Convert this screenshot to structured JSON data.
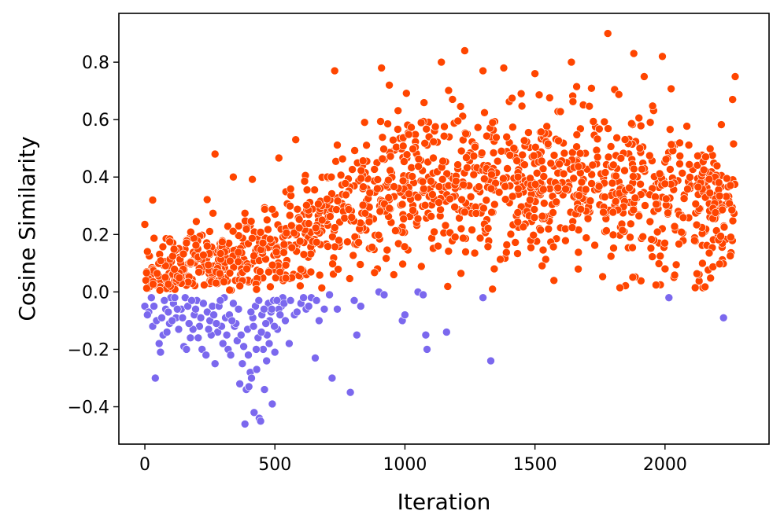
{
  "chart_data": {
    "type": "scatter",
    "title": "",
    "xlabel": "Iteration",
    "ylabel": "Cosine Similarity",
    "xlim": [
      -100,
      2400
    ],
    "ylim": [
      -0.53,
      0.97
    ],
    "xticks": [
      0,
      500,
      1000,
      1500,
      2000
    ],
    "xtick_labels": [
      "0",
      "500",
      "1000",
      "1500",
      "2000"
    ],
    "yticks": [
      -0.4,
      -0.2,
      0.0,
      0.2,
      0.4,
      0.6,
      0.8
    ],
    "ytick_labels": [
      "−0.4",
      "−0.2",
      "0.0",
      "0.2",
      "0.4",
      "0.6",
      "0.8"
    ],
    "grid": false,
    "legend": "none",
    "colors": {
      "positive": "#ff4500",
      "negative": "#7b68ee",
      "marker_edge": "#ffffff"
    },
    "series": [
      {
        "values_type": "negative-similarity points (sample of visible cloud)",
        "color": "#7b68ee",
        "points": [
          [
            0,
            -0.05
          ],
          [
            15,
            -0.07
          ],
          [
            30,
            -0.12
          ],
          [
            40,
            -0.3
          ],
          [
            55,
            -0.18
          ],
          [
            60,
            -0.21
          ],
          [
            70,
            -0.15
          ],
          [
            80,
            -0.06
          ],
          [
            95,
            -0.11
          ],
          [
            110,
            -0.04
          ],
          [
            120,
            -0.09
          ],
          [
            130,
            -0.13
          ],
          [
            150,
            -0.19
          ],
          [
            160,
            -0.2
          ],
          [
            175,
            -0.16
          ],
          [
            190,
            -0.08
          ],
          [
            200,
            -0.03
          ],
          [
            210,
            -0.12
          ],
          [
            220,
            -0.2
          ],
          [
            235,
            -0.22
          ],
          [
            250,
            -0.1
          ],
          [
            260,
            -0.05
          ],
          [
            270,
            -0.25
          ],
          [
            280,
            -0.14
          ],
          [
            300,
            -0.18
          ],
          [
            310,
            -0.09
          ],
          [
            320,
            -0.2
          ],
          [
            330,
            -0.22
          ],
          [
            345,
            -0.12
          ],
          [
            355,
            -0.17
          ],
          [
            365,
            -0.32
          ],
          [
            375,
            -0.25
          ],
          [
            385,
            -0.46
          ],
          [
            390,
            -0.34
          ],
          [
            400,
            -0.33
          ],
          [
            405,
            -0.28
          ],
          [
            410,
            -0.3
          ],
          [
            420,
            -0.42
          ],
          [
            430,
            -0.27
          ],
          [
            440,
            -0.44
          ],
          [
            445,
            -0.45
          ],
          [
            455,
            -0.2
          ],
          [
            460,
            -0.34
          ],
          [
            470,
            -0.15
          ],
          [
            480,
            -0.1
          ],
          [
            490,
            -0.39
          ],
          [
            500,
            -0.21
          ],
          [
            510,
            -0.13
          ],
          [
            525,
            -0.05
          ],
          [
            540,
            -0.1
          ],
          [
            555,
            -0.18
          ],
          [
            575,
            -0.08
          ],
          [
            600,
            -0.04
          ],
          [
            620,
            -0.06
          ],
          [
            640,
            -0.02
          ],
          [
            655,
            -0.23
          ],
          [
            670,
            -0.1
          ],
          [
            690,
            -0.06
          ],
          [
            710,
            -0.01
          ],
          [
            720,
            -0.3
          ],
          [
            740,
            -0.06
          ],
          [
            790,
            -0.35
          ],
          [
            805,
            -0.03
          ],
          [
            815,
            -0.15
          ],
          [
            830,
            -0.05
          ],
          [
            900,
            0.0
          ],
          [
            920,
            -0.01
          ],
          [
            990,
            -0.1
          ],
          [
            1000,
            -0.08
          ],
          [
            1050,
            0.0
          ],
          [
            1070,
            -0.01
          ],
          [
            1080,
            -0.15
          ],
          [
            1085,
            -0.2
          ],
          [
            1160,
            -0.14
          ],
          [
            1300,
            -0.02
          ],
          [
            1330,
            -0.24
          ],
          [
            2015,
            -0.02
          ],
          [
            2225,
            -0.09
          ],
          [
            25,
            -0.02
          ],
          [
            45,
            -0.1
          ],
          [
            85,
            -0.14
          ],
          [
            100,
            -0.02
          ],
          [
            140,
            -0.06
          ],
          [
            165,
            -0.05
          ],
          [
            185,
            -0.13
          ],
          [
            205,
            -0.16
          ],
          [
            240,
            -0.07
          ],
          [
            255,
            -0.15
          ],
          [
            285,
            -0.05
          ],
          [
            295,
            -0.12
          ],
          [
            305,
            -0.02
          ],
          [
            325,
            -0.08
          ],
          [
            340,
            -0.04
          ],
          [
            350,
            -0.11
          ],
          [
            360,
            -0.06
          ],
          [
            370,
            -0.15
          ],
          [
            380,
            -0.19
          ],
          [
            395,
            -0.13
          ],
          [
            415,
            -0.09
          ],
          [
            425,
            -0.05
          ],
          [
            435,
            -0.16
          ],
          [
            450,
            -0.08
          ],
          [
            465,
            -0.11
          ],
          [
            475,
            -0.04
          ],
          [
            485,
            -0.07
          ],
          [
            495,
            -0.03
          ],
          [
            515,
            -0.06
          ],
          [
            530,
            -0.02
          ],
          [
            10,
            -0.08
          ],
          [
            35,
            -0.05
          ],
          [
            65,
            -0.09
          ],
          [
            75,
            -0.03
          ],
          [
            90,
            -0.07
          ],
          [
            105,
            -0.1
          ],
          [
            115,
            -0.02
          ],
          [
            125,
            -0.06
          ],
          [
            145,
            -0.09
          ],
          [
            155,
            -0.02
          ],
          [
            170,
            -0.11
          ],
          [
            180,
            -0.03
          ],
          [
            195,
            -0.06
          ],
          [
            215,
            -0.09
          ],
          [
            225,
            -0.04
          ],
          [
            245,
            -0.13
          ],
          [
            265,
            -0.08
          ],
          [
            275,
            -0.11
          ],
          [
            290,
            -0.03
          ],
          [
            315,
            -0.15
          ],
          [
            335,
            -0.1
          ],
          [
            398,
            -0.22
          ],
          [
            408,
            -0.07
          ],
          [
            418,
            -0.12
          ],
          [
            428,
            -0.2
          ],
          [
            438,
            -0.03
          ],
          [
            448,
            -0.14
          ],
          [
            458,
            -0.06
          ],
          [
            468,
            -0.24
          ],
          [
            478,
            -0.18
          ],
          [
            488,
            -0.06
          ],
          [
            498,
            -0.12
          ],
          [
            508,
            -0.03
          ],
          [
            520,
            -0.08
          ],
          [
            535,
            -0.04
          ],
          [
            560,
            -0.03
          ],
          [
            585,
            -0.07
          ],
          [
            610,
            -0.02
          ],
          [
            630,
            -0.05
          ],
          [
            660,
            -0.03
          ]
        ]
      },
      {
        "values_type": "positive-similarity points (generated from visible trend)",
        "color": "#ff4500",
        "trend": [
          [
            0,
            0.07
          ],
          [
            200,
            0.09
          ],
          [
            400,
            0.11
          ],
          [
            600,
            0.17
          ],
          [
            800,
            0.28
          ],
          [
            1000,
            0.36
          ],
          [
            1200,
            0.38
          ],
          [
            1400,
            0.38
          ],
          [
            1600,
            0.38
          ],
          [
            1800,
            0.36
          ],
          [
            2000,
            0.32
          ],
          [
            2270,
            0.3
          ]
        ],
        "count": 1400,
        "outliers": [
          [
            0,
            0.235
          ],
          [
            30,
            0.32
          ],
          [
            270,
            0.48
          ],
          [
            340,
            0.4
          ],
          [
            580,
            0.53
          ],
          [
            730,
            0.77
          ],
          [
            910,
            0.78
          ],
          [
            940,
            0.72
          ],
          [
            1140,
            0.8
          ],
          [
            1230,
            0.84
          ],
          [
            1300,
            0.77
          ],
          [
            1380,
            0.78
          ],
          [
            1500,
            0.76
          ],
          [
            1640,
            0.8
          ],
          [
            1780,
            0.9
          ],
          [
            1880,
            0.83
          ],
          [
            1990,
            0.82
          ],
          [
            2270,
            0.75
          ],
          [
            2260,
            0.67
          ],
          [
            1920,
            0.75
          ]
        ]
      }
    ]
  }
}
